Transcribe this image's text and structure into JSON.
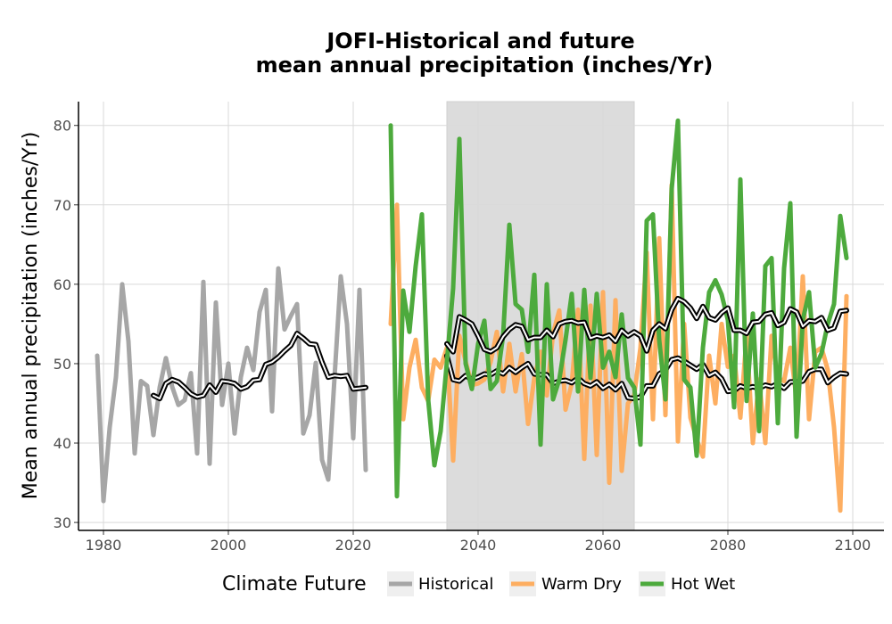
{
  "chart_data": {
    "type": "line",
    "title_line1": "JOFI-Historical and future",
    "title_line2": "mean annual precipitation (inches/Yr)",
    "xlabel": "",
    "ylabel": "Mean annual precipitation (inches/Yr)",
    "xlim": [
      1976,
      2105
    ],
    "ylim": [
      29,
      83
    ],
    "x_ticks": [
      1980,
      2000,
      2020,
      2040,
      2060,
      2080,
      2100
    ],
    "y_ticks": [
      30,
      40,
      50,
      60,
      70,
      80
    ],
    "grid": true,
    "shaded_period": [
      2035,
      2065
    ],
    "legend": {
      "title": "Climate Future",
      "position": "bottom",
      "entries": [
        {
          "label": "Historical",
          "color": "#a6a6a6"
        },
        {
          "label": "Warm Dry",
          "color": "#fdae61"
        },
        {
          "label": "Hot Wet",
          "color": "#4daa3d"
        }
      ]
    },
    "series": [
      {
        "name": "Historical",
        "color": "#a6a6a6",
        "x": [
          1979,
          1980,
          1981,
          1982,
          1983,
          1984,
          1985,
          1986,
          1987,
          1988,
          1989,
          1990,
          1991,
          1992,
          1993,
          1994,
          1995,
          1996,
          1997,
          1998,
          1999,
          2000,
          2001,
          2002,
          2003,
          2004,
          2005,
          2006,
          2007,
          2008,
          2009,
          2010,
          2011,
          2012,
          2013,
          2014,
          2015,
          2016,
          2017,
          2018,
          2019,
          2020,
          2021,
          2022
        ],
        "y": [
          51,
          32.7,
          42,
          48.3,
          60,
          52.8,
          38.7,
          47.8,
          47.2,
          41,
          47,
          50.7,
          47.1,
          44.8,
          45.4,
          48.8,
          38.7,
          60.3,
          37.4,
          57.7,
          44.8,
          50,
          41.2,
          48.3,
          52,
          49.2,
          56.5,
          59.3,
          44,
          62,
          54.3,
          56,
          57.5,
          41.2,
          43.5,
          50.1,
          37.9,
          35.4,
          48.2,
          61,
          55,
          40.6,
          59.3,
          36.6
        ]
      },
      {
        "name": "Historical smooth",
        "color": "#000000",
        "smooth": true,
        "x": [
          1988,
          1989,
          1990,
          1991,
          1992,
          1993,
          1994,
          1995,
          1996,
          1997,
          1998,
          1999,
          2000,
          2001,
          2002,
          2003,
          2004,
          2005,
          2006,
          2007,
          2008,
          2009,
          2010,
          2011,
          2012,
          2013,
          2014,
          2015,
          2016,
          2017,
          2018,
          2019,
          2020,
          2021,
          2022
        ],
        "y": [
          46,
          45.6,
          47.5,
          48,
          47.7,
          47,
          46.2,
          45.8,
          46,
          47.3,
          46.4,
          47.8,
          47.7,
          47.5,
          46.8,
          47.1,
          47.9,
          48,
          49.9,
          50.2,
          50.8,
          51.6,
          52.3,
          53.8,
          53.2,
          52.5,
          52.4,
          50.2,
          48.3,
          48.5,
          48.4,
          48.5,
          46.8,
          46.9,
          47
        ]
      },
      {
        "name": "Warm Dry",
        "color": "#fdae61",
        "x": [
          2026,
          2027,
          2028,
          2029,
          2030,
          2031,
          2032,
          2033,
          2034,
          2035,
          2036,
          2037,
          2038,
          2039,
          2040,
          2041,
          2042,
          2043,
          2044,
          2045,
          2046,
          2047,
          2048,
          2049,
          2050,
          2051,
          2052,
          2053,
          2054,
          2055,
          2056,
          2057,
          2058,
          2059,
          2060,
          2061,
          2062,
          2063,
          2064,
          2065,
          2066,
          2067,
          2068,
          2069,
          2070,
          2071,
          2072,
          2073,
          2074,
          2075,
          2076,
          2077,
          2078,
          2079,
          2080,
          2081,
          2082,
          2083,
          2084,
          2085,
          2086,
          2087,
          2088,
          2089,
          2090,
          2091,
          2092,
          2093,
          2094,
          2095,
          2096,
          2097,
          2098,
          2099
        ],
        "y": [
          55,
          70,
          43,
          49.5,
          53,
          47,
          45.3,
          50.5,
          49.5,
          52,
          37.8,
          53.5,
          50.3,
          47.3,
          47.5,
          48,
          50.2,
          54,
          46.5,
          52.5,
          46.5,
          51.2,
          42.4,
          48.2,
          51.5,
          46,
          53.8,
          56.7,
          44.2,
          47.5,
          56.8,
          38,
          57.3,
          38.5,
          59,
          35,
          58,
          36.5,
          45,
          46,
          52,
          64,
          43,
          65.8,
          43.5,
          72.5,
          40.2,
          55,
          43.2,
          40.5,
          38.3,
          51,
          45,
          55,
          49.6,
          51,
          43.2,
          53.5,
          40,
          48,
          40,
          53.5,
          48.2,
          47.8,
          52,
          45.5,
          61,
          43,
          51.5,
          52,
          49.2,
          42,
          31.5,
          58.5
        ]
      },
      {
        "name": "Warm Dry smooth",
        "color": "#000000",
        "smooth": true,
        "x": [
          2035,
          2036,
          2037,
          2038,
          2039,
          2040,
          2041,
          2042,
          2043,
          2044,
          2045,
          2046,
          2047,
          2048,
          2049,
          2050,
          2051,
          2052,
          2053,
          2054,
          2055,
          2056,
          2057,
          2058,
          2059,
          2060,
          2061,
          2062,
          2063,
          2064,
          2065,
          2066,
          2067,
          2068,
          2069,
          2070,
          2071,
          2072,
          2073,
          2074,
          2075,
          2076,
          2077,
          2078,
          2079,
          2080,
          2081,
          2082,
          2083,
          2084,
          2085,
          2086,
          2087,
          2088,
          2089,
          2090,
          2091,
          2092,
          2093,
          2094,
          2095,
          2096,
          2097,
          2098,
          2099
        ],
        "y": [
          51,
          48,
          47.8,
          48.5,
          48,
          48.3,
          48.7,
          48.6,
          49.1,
          48.7,
          49.5,
          48.9,
          49.5,
          50,
          48.7,
          48.6,
          48.6,
          47.5,
          47.8,
          47.9,
          47.6,
          48.2,
          47.5,
          47.2,
          47.7,
          46.9,
          47.4,
          46.7,
          47.5,
          45.7,
          45.6,
          45.8,
          47.2,
          47.2,
          48.7,
          49.2,
          50.5,
          50.7,
          50.3,
          49.8,
          49.3,
          49.9,
          48.5,
          48.9,
          48.1,
          46.5,
          46.6,
          47.2,
          46.9,
          47.1,
          46.9,
          47.3,
          47.1,
          47.5,
          46.9,
          47.7,
          47.7,
          47.8,
          49,
          49.3,
          49.3,
          47.6,
          48.3,
          48.8,
          48.7
        ]
      },
      {
        "name": "Hot Wet",
        "color": "#4daa3d",
        "x": [
          2026,
          2027,
          2028,
          2029,
          2030,
          2031,
          2032,
          2033,
          2034,
          2035,
          2036,
          2037,
          2038,
          2039,
          2040,
          2041,
          2042,
          2043,
          2044,
          2045,
          2046,
          2047,
          2048,
          2049,
          2050,
          2051,
          2052,
          2053,
          2054,
          2055,
          2056,
          2057,
          2058,
          2059,
          2060,
          2061,
          2062,
          2063,
          2064,
          2065,
          2066,
          2067,
          2068,
          2069,
          2070,
          2071,
          2072,
          2073,
          2074,
          2075,
          2076,
          2077,
          2078,
          2079,
          2080,
          2081,
          2082,
          2083,
          2084,
          2085,
          2086,
          2087,
          2088,
          2089,
          2090,
          2091,
          2092,
          2093,
          2094,
          2095,
          2096,
          2097,
          2098,
          2099
        ],
        "y": [
          80,
          33.3,
          59.2,
          54,
          62.3,
          68.8,
          45.5,
          37.2,
          41.5,
          50.2,
          59.5,
          78.3,
          50,
          46.8,
          52.5,
          55.4,
          46.8,
          47.8,
          53.5,
          67.5,
          57.5,
          56.8,
          51.5,
          61.2,
          39.8,
          60,
          45.5,
          48,
          53,
          58.8,
          46.5,
          59.3,
          48.2,
          58.8,
          49.5,
          51.5,
          48.3,
          56.2,
          48.2,
          47,
          39.8,
          68,
          68.8,
          53,
          45.5,
          72,
          80.6,
          48,
          47,
          38.4,
          52,
          59,
          60.5,
          58.7,
          55.5,
          44.5,
          73.2,
          45.3,
          56.3,
          41.5,
          62.3,
          63.3,
          42.5,
          62,
          70.2,
          40.8,
          55.5,
          59,
          49.5,
          51.3,
          55,
          57.5,
          68.6,
          63.3
        ]
      },
      {
        "name": "Hot Wet smooth",
        "color": "#000000",
        "smooth": true,
        "x": [
          2035,
          2036,
          2037,
          2038,
          2039,
          2040,
          2041,
          2042,
          2043,
          2044,
          2045,
          2046,
          2047,
          2048,
          2049,
          2050,
          2051,
          2052,
          2053,
          2054,
          2055,
          2056,
          2057,
          2058,
          2059,
          2060,
          2061,
          2062,
          2063,
          2064,
          2065,
          2066,
          2067,
          2068,
          2069,
          2070,
          2071,
          2072,
          2073,
          2074,
          2075,
          2076,
          2077,
          2078,
          2079,
          2080,
          2081,
          2082,
          2083,
          2084,
          2085,
          2086,
          2087,
          2088,
          2089,
          2090,
          2091,
          2092,
          2093,
          2094,
          2095,
          2096,
          2097,
          2098,
          2099
        ],
        "y": [
          52.5,
          51.5,
          55.9,
          55.5,
          55,
          53.5,
          51.8,
          51.5,
          52,
          53.4,
          54.3,
          54.9,
          54.7,
          53,
          53.3,
          53.3,
          54.2,
          53.4,
          55,
          55.3,
          55.4,
          55.1,
          55.2,
          53.2,
          53.5,
          53.3,
          53.6,
          52.8,
          54.2,
          53.5,
          54,
          53.5,
          51.6,
          54.2,
          55,
          54.4,
          56.8,
          58.2,
          57.8,
          57,
          55.7,
          57.2,
          55.8,
          55.5,
          56.4,
          57,
          54.2,
          54.2,
          53.8,
          55.2,
          55.3,
          56.2,
          56.4,
          54.8,
          55.2,
          56.9,
          56.5,
          54.7,
          55.4,
          55.3,
          55.8,
          54.2,
          54.5,
          56.6,
          56.7
        ]
      }
    ]
  }
}
